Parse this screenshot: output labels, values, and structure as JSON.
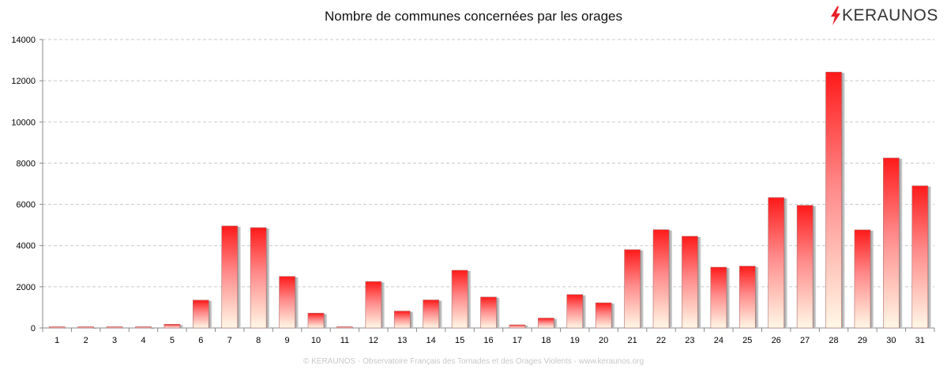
{
  "brand": {
    "name": "KERAUNOS",
    "bolt_color": "#e8202a"
  },
  "footer": {
    "credit": "© KERAUNOS - Observatoire Français des Tornades et des Orages Violents - www.keraunos.org"
  },
  "chart_data": {
    "type": "bar",
    "title": "Nombre de communes concernées par les orages",
    "xlabel": "",
    "ylabel": "",
    "categories": [
      "1",
      "2",
      "3",
      "4",
      "5",
      "6",
      "7",
      "8",
      "9",
      "10",
      "11",
      "12",
      "13",
      "14",
      "15",
      "16",
      "17",
      "18",
      "19",
      "20",
      "21",
      "22",
      "23",
      "24",
      "25",
      "26",
      "27",
      "28",
      "29",
      "30",
      "31"
    ],
    "values": [
      30,
      20,
      30,
      20,
      180,
      1350,
      4950,
      4870,
      2500,
      720,
      30,
      2250,
      820,
      1360,
      2800,
      1500,
      150,
      480,
      1620,
      1220,
      3800,
      4770,
      4450,
      2950,
      3000,
      6330,
      5950,
      12420,
      4760,
      8250,
      6900
    ],
    "ylim": [
      0,
      14000
    ],
    "yticks": [
      0,
      2000,
      4000,
      6000,
      8000,
      10000,
      12000,
      14000
    ],
    "grid": true,
    "colors": {
      "bar_top": "#ff1a1a",
      "bar_bottom": "#fff8e6",
      "grid": "#c8c8c8"
    }
  }
}
